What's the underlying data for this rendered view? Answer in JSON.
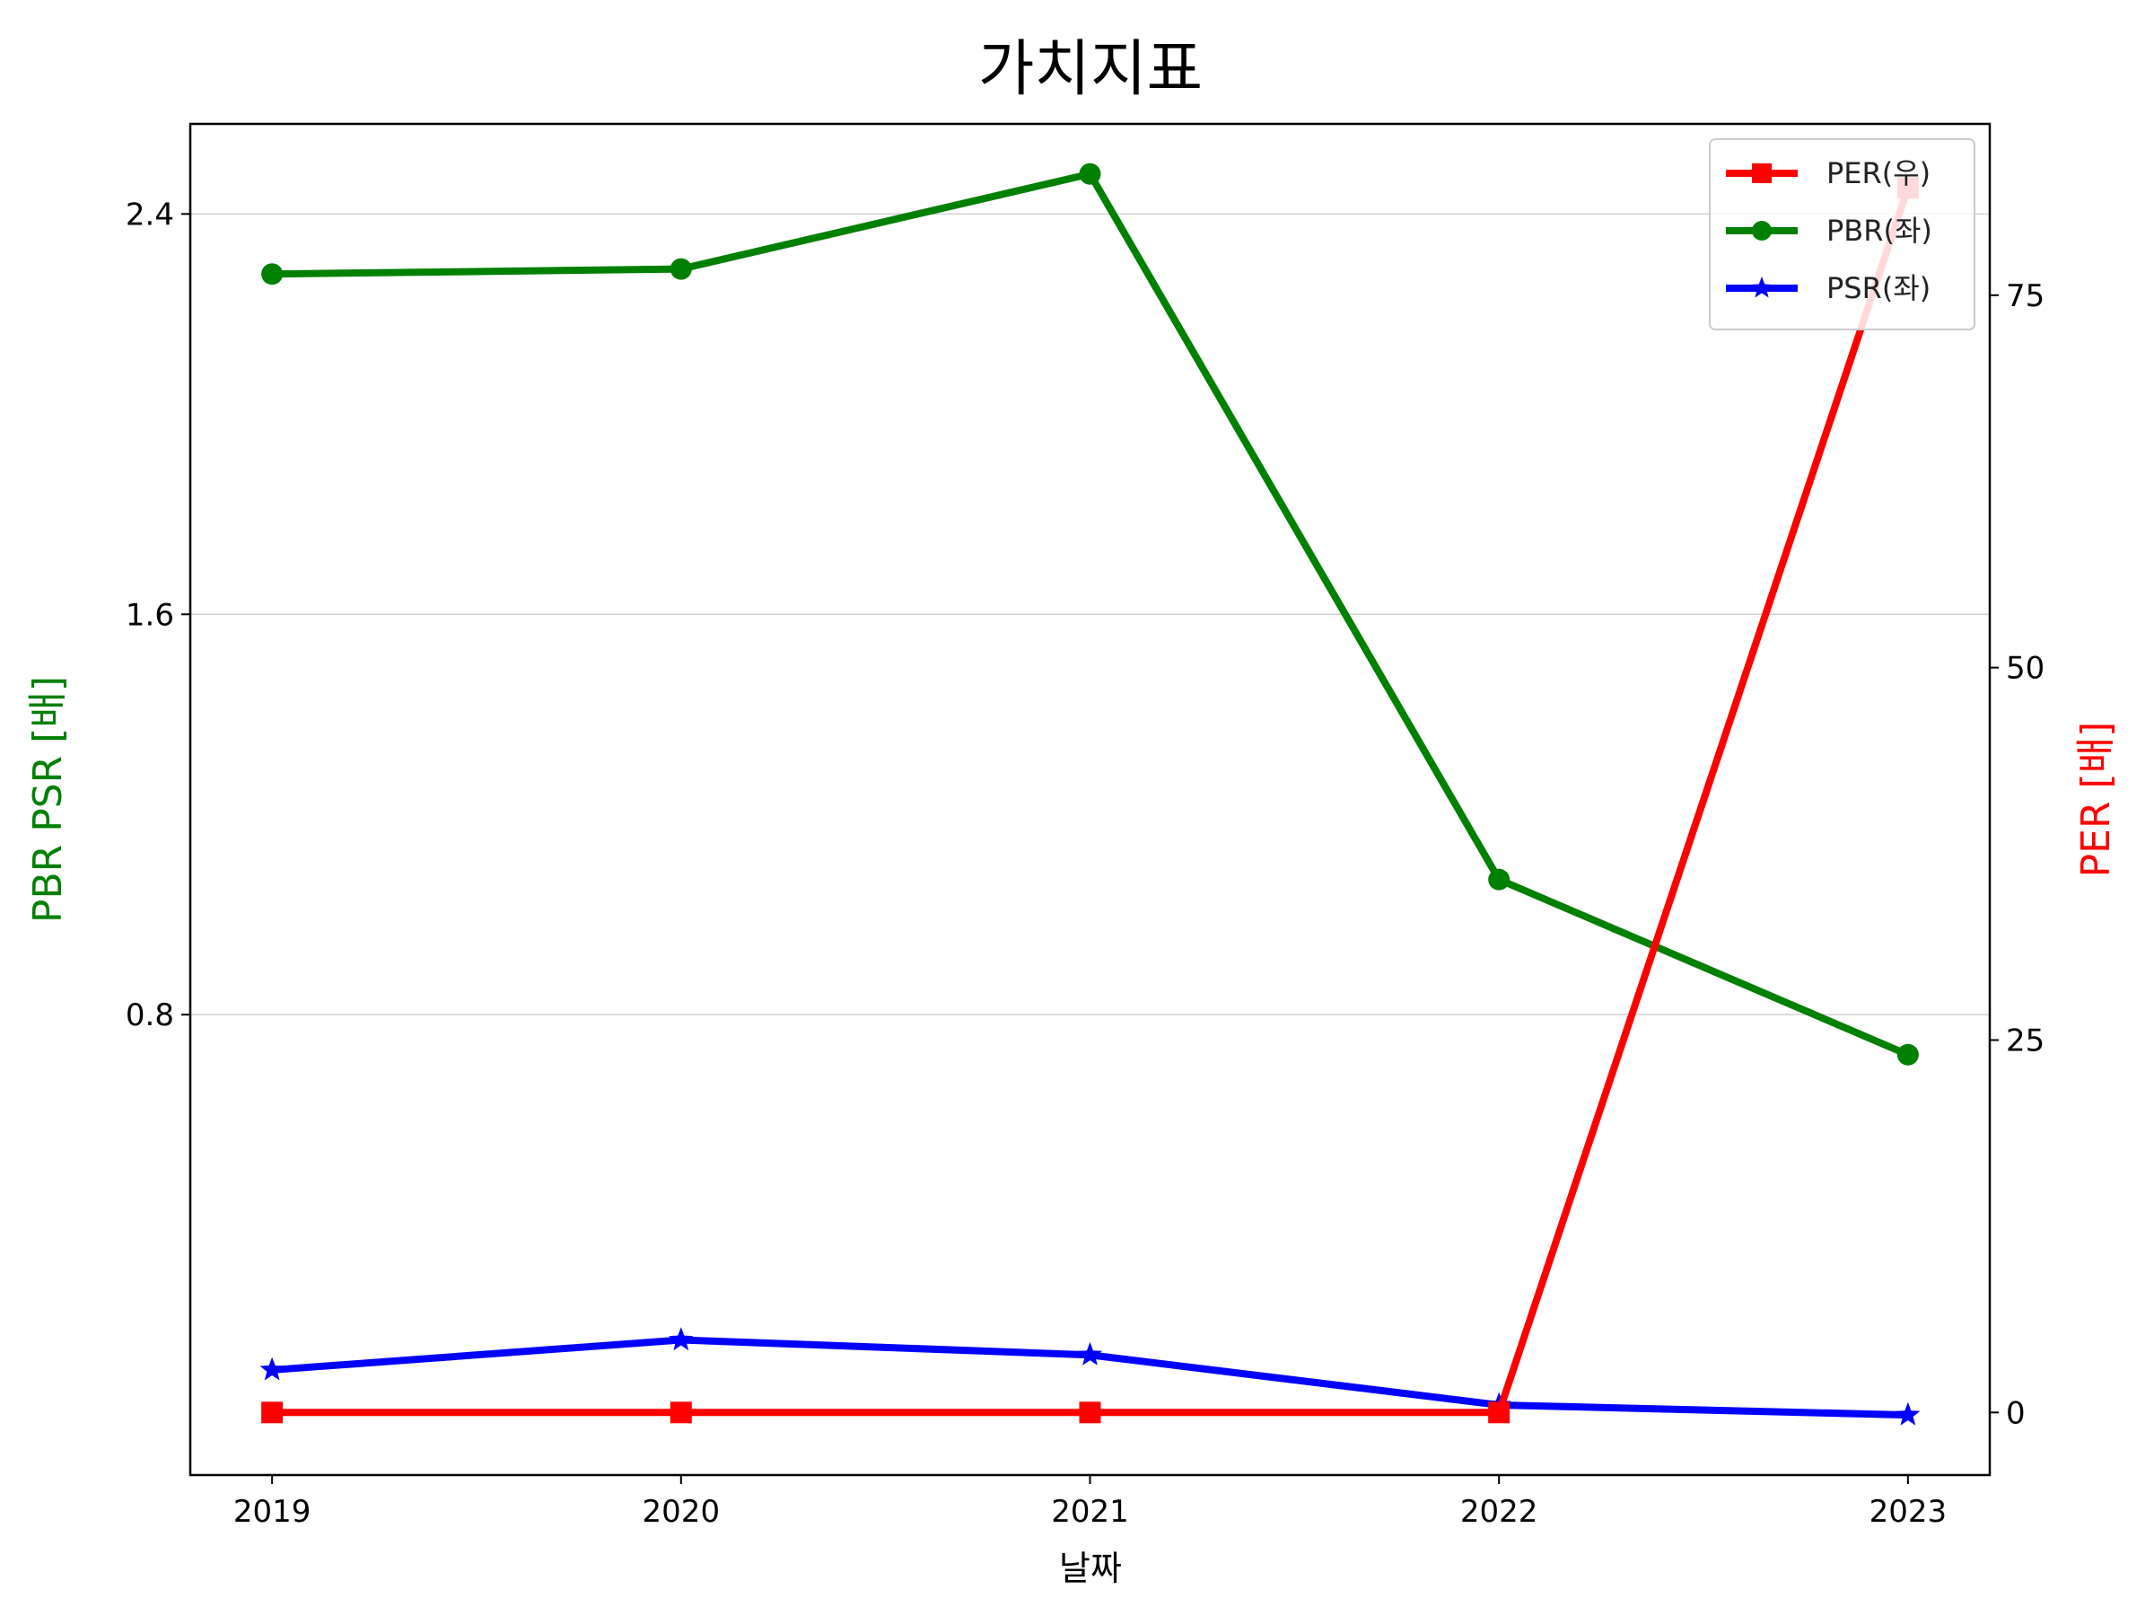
{
  "chart_data": {
    "type": "line",
    "title": "가치지표",
    "xlabel": "날짜",
    "ylabel_left": "PBR PSR [배]",
    "ylabel_right": "PER [배]",
    "categories": [
      "2019",
      "2020",
      "2021",
      "2022",
      "2023"
    ],
    "left_axis": {
      "ylim": [
        -0.12,
        2.58
      ],
      "ticks": [
        0.8,
        1.6,
        2.4
      ],
      "tick_labels": [
        "0.8",
        "1.6",
        "2.4"
      ],
      "grid": true
    },
    "right_axis": {
      "ylim": [
        -4.2,
        86.5
      ],
      "ticks": [
        0,
        25,
        50,
        75
      ],
      "tick_labels": [
        "0",
        "25",
        "50",
        "75"
      ]
    },
    "series": [
      {
        "name": "PER(우)",
        "axis": "right",
        "color": "#ff0000",
        "marker": "square",
        "values": [
          0,
          0,
          0,
          0,
          82.2
        ]
      },
      {
        "name": "PBR(좌)",
        "axis": "left",
        "color": "#008000",
        "marker": "circle",
        "values": [
          2.28,
          2.29,
          2.48,
          1.07,
          0.72
        ]
      },
      {
        "name": "PSR(좌)",
        "axis": "left",
        "color": "#0000ff",
        "marker": "star",
        "values": [
          0.09,
          0.15,
          0.12,
          0.02,
          0.0
        ]
      }
    ],
    "legend": "top-right",
    "axis_label_colors": {
      "left": "#008000",
      "right": "#ff0000"
    }
  }
}
